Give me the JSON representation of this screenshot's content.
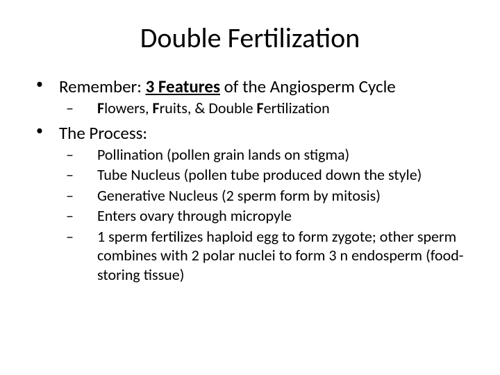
{
  "title": "Double Fertilization",
  "bullets": [
    {
      "runs": [
        {
          "text": "Remember: ",
          "bold": false,
          "underline": false
        },
        {
          "text": "3 Features",
          "bold": true,
          "underline": true
        },
        {
          "text": " of the Angiosperm Cycle",
          "bold": false,
          "underline": false
        }
      ],
      "sub": [
        {
          "runs": [
            {
              "text": "F",
              "bold": true,
              "underline": false
            },
            {
              "text": "lowers, ",
              "bold": false,
              "underline": false
            },
            {
              "text": "F",
              "bold": true,
              "underline": false
            },
            {
              "text": "ruits, & Double ",
              "bold": false,
              "underline": false
            },
            {
              "text": "F",
              "bold": true,
              "underline": false
            },
            {
              "text": "ertilization",
              "bold": false,
              "underline": false
            }
          ]
        }
      ]
    },
    {
      "runs": [
        {
          "text": "The Process:",
          "bold": false,
          "underline": false
        }
      ],
      "sub": [
        {
          "runs": [
            {
              "text": "Pollination (pollen grain lands on stigma)",
              "bold": false,
              "underline": false
            }
          ]
        },
        {
          "runs": [
            {
              "text": "Tube Nucleus (pollen tube produced down the style)",
              "bold": false,
              "underline": false
            }
          ]
        },
        {
          "runs": [
            {
              "text": "Generative Nucleus (2 sperm form by mitosis)",
              "bold": false,
              "underline": false
            }
          ]
        },
        {
          "runs": [
            {
              "text": "Enters ovary through micropyle",
              "bold": false,
              "underline": false
            }
          ]
        },
        {
          "runs": [
            {
              "text": "1 sperm fertilizes haploid egg to form zygote; other sperm combines with 2 polar nuclei to form 3 n endosperm (food-storing tissue)",
              "bold": false,
              "underline": false
            }
          ]
        }
      ]
    }
  ],
  "colors": {
    "background": "#ffffff",
    "text": "#000000"
  },
  "fontsizes": {
    "title": 40,
    "level1": 25,
    "level2": 22
  }
}
